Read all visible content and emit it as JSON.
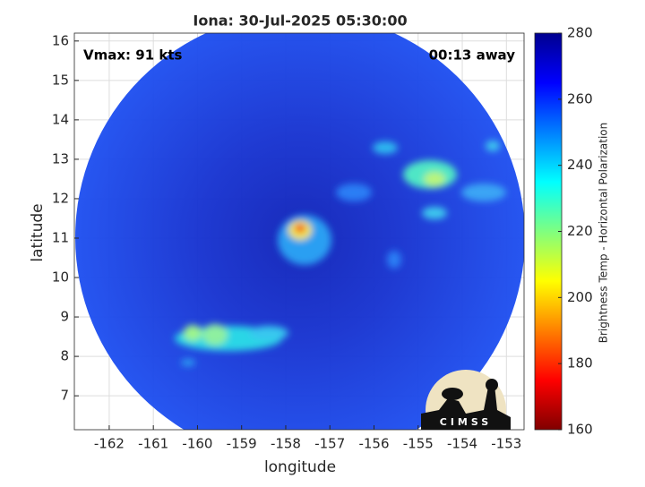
{
  "chart_data": {
    "type": "image",
    "title": "Iona: 30-Jul-2025 05:30:00",
    "annotations": [
      "Vmax: 91 kts",
      "00:13 away"
    ],
    "xlabel": "longitude",
    "ylabel": "latitude",
    "xlim": [
      -162.79,
      -152.6
    ],
    "xticks": [
      -162,
      -161,
      -160,
      -159,
      -158,
      -157,
      -156,
      -155,
      -154,
      -153
    ],
    "ylim": [
      6.14,
      16.2
    ],
    "yticks": [
      7,
      8,
      9,
      10,
      11,
      12,
      13,
      14,
      15,
      16
    ],
    "grid": true,
    "colorbar": {
      "label": "Brightness Temp - Horizontal Polarization",
      "lim": [
        160,
        280
      ],
      "ticks": [
        160,
        180,
        200,
        220,
        240,
        260,
        280
      ],
      "colormap": "jet"
    },
    "logo": "CIMSS"
  }
}
